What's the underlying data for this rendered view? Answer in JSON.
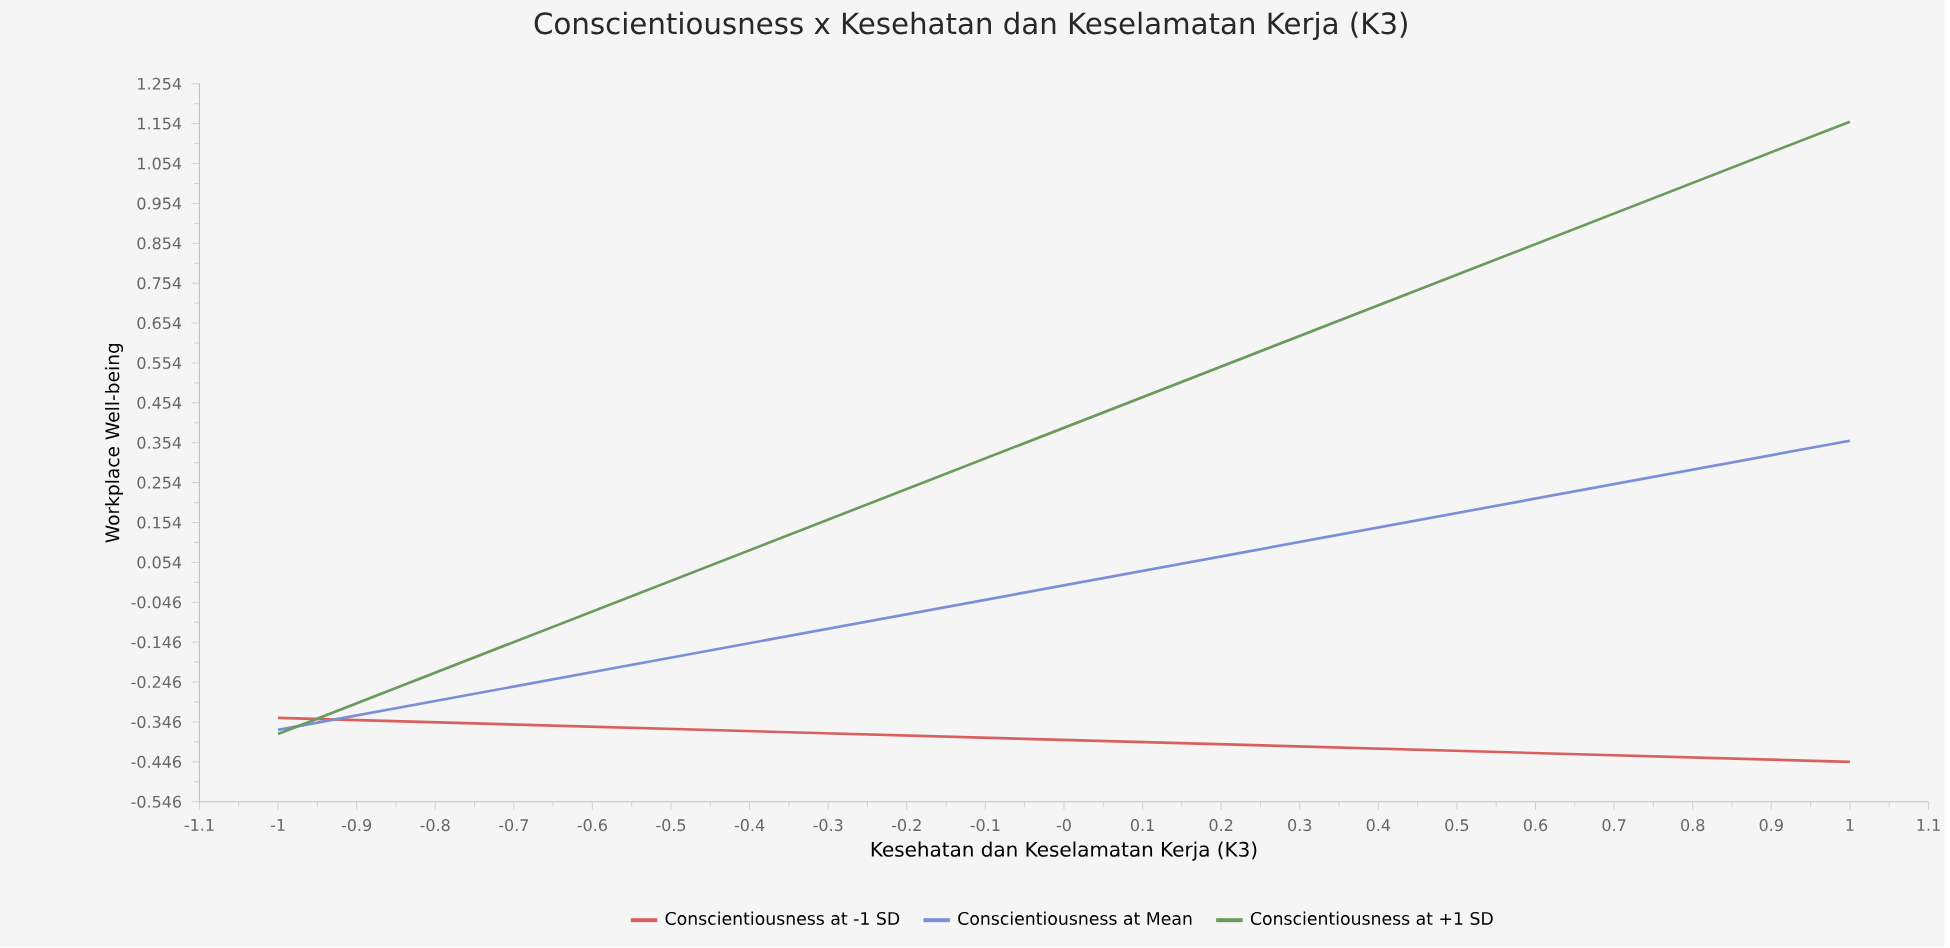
{
  "chart_data": {
    "type": "line",
    "title": "Conscientiousness x Kesehatan dan Keselamatan Kerja (K3)",
    "xlabel": "Kesehatan dan Keselamatan Kerja (K3)",
    "ylabel": "Workplace Well-being",
    "x": [
      -1,
      1
    ],
    "series": [
      {
        "name": "Conscientiousness at -1 SD",
        "color": "#d9605f",
        "values": [
          -0.336,
          -0.446
        ]
      },
      {
        "name": "Conscientiousness at Mean",
        "color": "#7b8fd6",
        "values": [
          -0.366,
          0.359
        ]
      },
      {
        "name": "Conscientiousness at +1 SD",
        "color": "#6a9a5e",
        "values": [
          -0.376,
          1.159
        ]
      }
    ],
    "xlim": [
      -1.1,
      1.1
    ],
    "xticks": [
      -1.1,
      -1,
      -0.9,
      -0.8,
      -0.7,
      -0.6,
      -0.5,
      -0.4,
      -0.3,
      -0.2,
      -0.1,
      {
        "value": 0,
        "label": "-0"
      },
      0.1,
      0.2,
      0.3,
      0.4,
      0.5,
      0.6,
      0.7,
      0.8,
      0.9,
      1,
      1.1
    ],
    "ylim": [
      -0.546,
      1.254
    ],
    "yticks": [
      -0.546,
      -0.446,
      -0.346,
      -0.246,
      -0.146,
      -0.046,
      0.054,
      0.154,
      0.254,
      0.354,
      0.454,
      0.554,
      0.654,
      0.754,
      0.854,
      0.954,
      1.054,
      1.154,
      1.254
    ],
    "grid": false,
    "legend": "bottom",
    "marker": "none",
    "line_style": "solid"
  }
}
